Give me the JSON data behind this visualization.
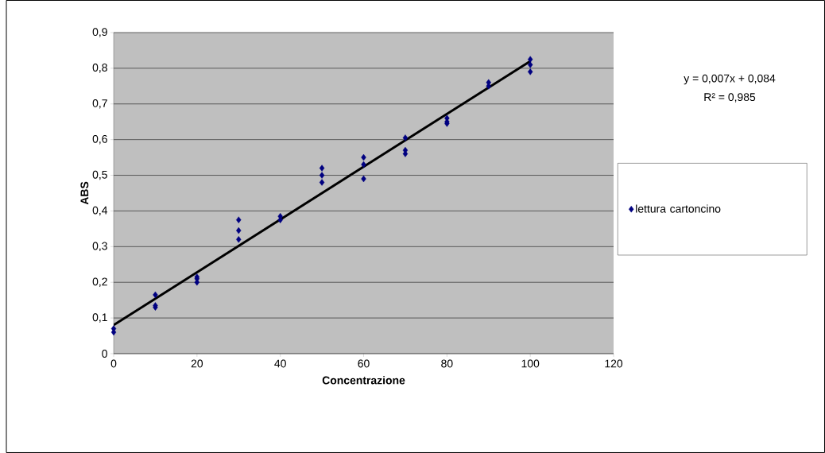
{
  "chart_data": {
    "type": "scatter",
    "xlabel": "Concentrazione",
    "ylabel": "ABS",
    "annotations": [
      "y = 0,007x + 0,084",
      "R² = 0,985"
    ],
    "series": [
      {
        "name": "lettura cartoncino",
        "color": "#000080",
        "marker": "diamond",
        "x": [
          0,
          0,
          10,
          10,
          10,
          20,
          20,
          20,
          30,
          30,
          30,
          40,
          40,
          50,
          50,
          50,
          60,
          60,
          60,
          70,
          70,
          70,
          80,
          80,
          80,
          90,
          90,
          100,
          100,
          100
        ],
        "values": [
          0.07,
          0.06,
          0.165,
          0.135,
          0.13,
          0.215,
          0.21,
          0.2,
          0.375,
          0.345,
          0.32,
          0.385,
          0.375,
          0.52,
          0.5,
          0.48,
          0.55,
          0.53,
          0.49,
          0.605,
          0.57,
          0.56,
          0.66,
          0.65,
          0.645,
          0.76,
          0.75,
          0.825,
          0.81,
          0.79
        ]
      },
      {
        "type": "line",
        "color": "#000000",
        "x": [
          0,
          100
        ],
        "values": [
          0.08,
          0.82
        ]
      }
    ],
    "xlim": [
      0,
      120
    ],
    "xticks": [
      0,
      20,
      40,
      60,
      80,
      100,
      120
    ],
    "ylim": [
      0,
      0.9
    ],
    "yticks": [
      0,
      {
        "value": 0.1,
        "label": "0,1"
      },
      {
        "value": 0.2,
        "label": "0,2"
      },
      {
        "value": 0.3,
        "label": "0,3"
      },
      {
        "value": 0.4,
        "label": "0,4"
      },
      {
        "value": 0.5,
        "label": "0,5"
      },
      {
        "value": 0.6,
        "label": "0,6"
      },
      {
        "value": 0.7,
        "label": "0,7"
      },
      {
        "value": 0.8,
        "label": "0,8"
      },
      {
        "value": 0.9,
        "label": "0,9"
      }
    ],
    "grid": "y",
    "legend": "right"
  }
}
